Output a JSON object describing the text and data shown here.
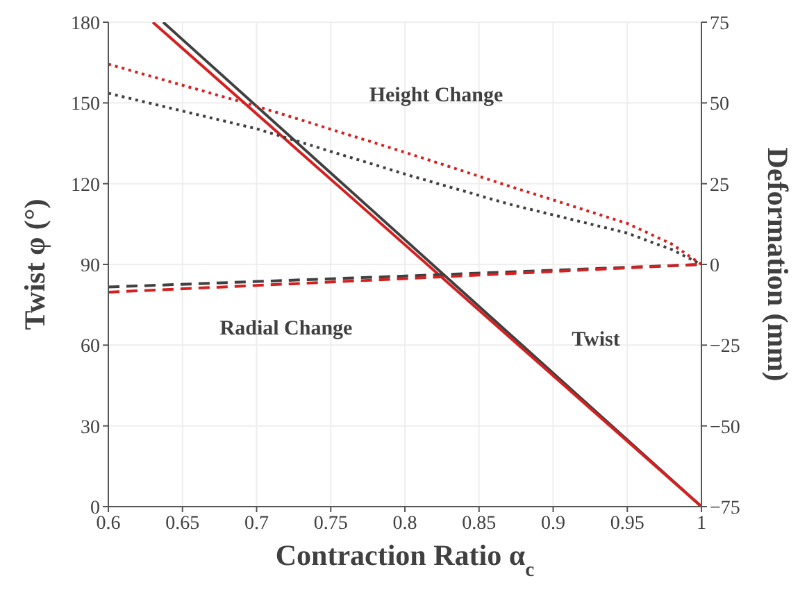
{
  "chart_data": {
    "type": "line",
    "xlabel": "Contraction Ratio α$_{c}$",
    "ylabel": "Twist φ (°)",
    "y2label": "Deformation (mm)",
    "xlim": [
      0.6,
      1
    ],
    "xticks": [
      0.6,
      0.65,
      0.7,
      0.75,
      0.8,
      0.85,
      0.9,
      0.95,
      1
    ],
    "ylim": [
      0,
      180
    ],
    "yticks": [
      0,
      30,
      60,
      90,
      120,
      150,
      180
    ],
    "y2lim": [
      -75,
      75
    ],
    "y2ticks": [
      {
        "value": -75,
        "label": "−75"
      },
      {
        "value": -50,
        "label": "−50"
      },
      {
        "value": -25,
        "label": "−25"
      },
      0,
      25,
      50,
      75
    ],
    "grid": true,
    "series": [
      {
        "color": "#404040",
        "line_style": "solid",
        "x": [
          0.637,
          1
        ],
        "values": [
          180,
          0
        ]
      },
      {
        "color": "#d62020",
        "line_style": "solid",
        "x": [
          0.63,
          1
        ],
        "values": [
          180,
          0
        ]
      },
      {
        "color": "#404040",
        "line_style": "dotted",
        "axis": "y2",
        "x": [
          0.6,
          0.7,
          0.805,
          0.87,
          0.95,
          0.98,
          1
        ],
        "values": [
          53,
          42,
          27.3,
          18.7,
          9.7,
          4.6,
          0
        ]
      },
      {
        "color": "#d62020",
        "line_style": "dotted",
        "axis": "y2",
        "x": [
          0.6,
          0.7,
          0.805,
          0.87,
          0.95,
          0.98,
          1
        ],
        "values": [
          62,
          49,
          34,
          24.3,
          12.7,
          6.3,
          0
        ]
      },
      {
        "color": "#404040",
        "line_style": "dashed",
        "axis": "y2",
        "x": [
          0.6,
          0.8,
          1
        ],
        "values": [
          -7,
          -3.6,
          0
        ]
      },
      {
        "color": "#d62020",
        "line_style": "dashed",
        "axis": "y2",
        "x": [
          0.6,
          0.8,
          1
        ],
        "values": [
          -8.6,
          -4.4,
          0
        ]
      }
    ],
    "annotations": [
      "Height Change",
      "Radial Change",
      "Twist"
    ]
  }
}
